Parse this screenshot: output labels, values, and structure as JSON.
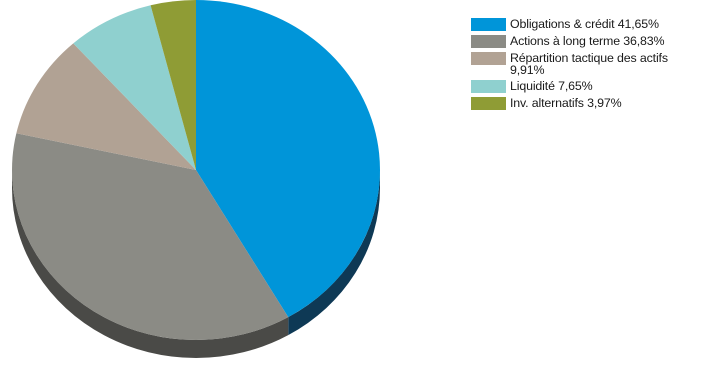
{
  "chart_data": {
    "type": "pie",
    "title": "",
    "series": [
      {
        "name": "Obligations & crédit 41,65%",
        "value": 41.65,
        "color": "#0095d9",
        "side_color": "#0e3955"
      },
      {
        "name": "Actions à long terme 36,83%",
        "value": 36.83,
        "color": "#8b8b85",
        "side_color": "#4a4a47"
      },
      {
        "name": "Répartition tactique des actifs 9,91%",
        "value": 9.91,
        "color": "#b1a294",
        "side_color": "#5e5650"
      },
      {
        "name": "Liquidité 7,65%",
        "value": 7.65,
        "color": "#8fd0cf",
        "side_color": "#4f7776"
      },
      {
        "name": "Inv. alternatifs 3,97%",
        "value": 3.97,
        "color": "#8f9c35",
        "side_color": "#4f561d"
      }
    ],
    "legend_position": "right",
    "style": "3d"
  }
}
